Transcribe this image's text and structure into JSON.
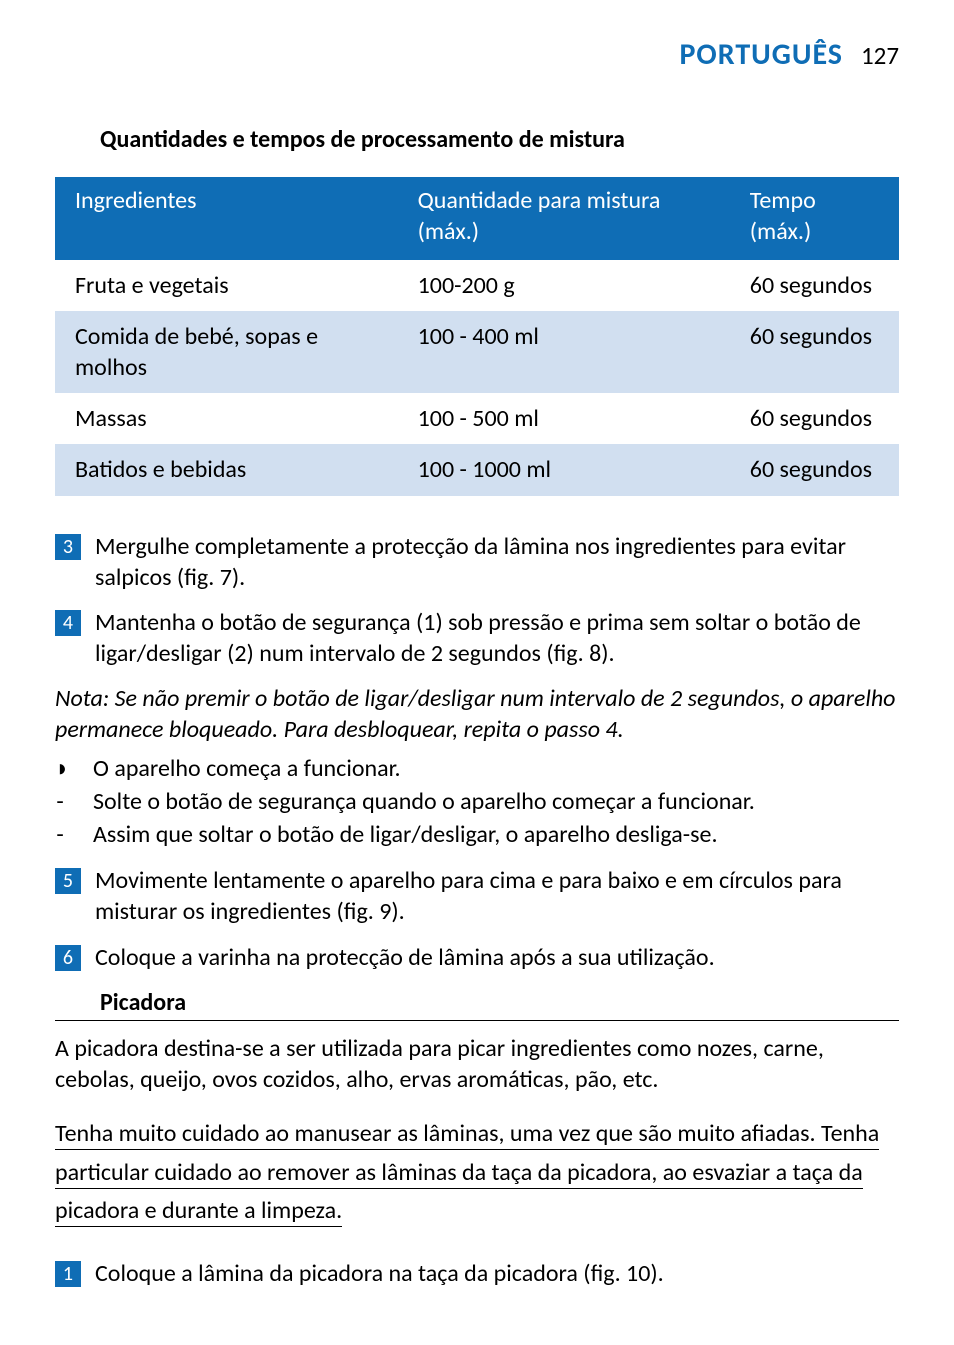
{
  "header": {
    "language": "PORTUGUÊS",
    "page_number": "127",
    "accent_color": "#0f6db5"
  },
  "table_section": {
    "title": "Quantidades e tempos de processamento de mistura",
    "header_row_bg": "#0f6db5",
    "row_odd_bg": "#ffffff",
    "row_even_bg": "#d1dff0",
    "columns": [
      "Ingredientes",
      "Quantidade para mistura (máx.)",
      "Tempo (máx.)"
    ],
    "rows": [
      [
        "Fruta e vegetais",
        "100-200 g",
        "60 segundos"
      ],
      [
        "Comida de bebé, sopas e molhos",
        "100 - 400 ml",
        "60 segundos"
      ],
      [
        "Massas",
        "100 - 500 ml",
        "60 segundos"
      ],
      [
        "Batidos e bebidas",
        "100 - 1000 ml",
        "60 segundos"
      ]
    ]
  },
  "steps_a": [
    {
      "n": "3",
      "text": "Mergulhe completamente a protecção da lâmina nos ingredientes para evitar salpicos (fig. 7)."
    },
    {
      "n": "4",
      "text": "Mantenha o botão de segurança (1) sob pressão e prima sem soltar o botão de ligar/desligar (2) num intervalo de 2 segundos (fig. 8)."
    }
  ],
  "note": "Nota: Se não premir o botão de ligar/desligar num intervalo de 2 segundos, o aparelho permanece bloqueado. Para desbloquear, repita o passo 4.",
  "bullets": [
    {
      "marker": "◗",
      "text": "O aparelho começa a funcionar."
    },
    {
      "marker": "-",
      "text": "Solte o botão de segurança quando o aparelho começar a funcionar."
    },
    {
      "marker": "-",
      "text": "Assim que soltar o botão de ligar/desligar, o aparelho desliga-se."
    }
  ],
  "steps_b": [
    {
      "n": "5",
      "text": "Movimente lentamente o aparelho para cima e para baixo e em círculos para misturar os ingredientes (fig. 9)."
    },
    {
      "n": "6",
      "text": "Coloque a varinha na protecção de lâmina após a sua utilização."
    }
  ],
  "subsection": {
    "title": "Picadora",
    "intro": "A picadora destina-se a ser utilizada para picar ingredientes como nozes, carne, cebolas, queijo, ovos cozidos, alho, ervas aromáticas, pão, etc.",
    "warning": "Tenha muito cuidado ao manusear as lâminas, uma vez que são muito afiadas. Tenha particular cuidado ao remover as lâminas da taça da picadora, ao esvaziar a taça da picadora e durante a limpeza."
  },
  "steps_c": [
    {
      "n": "1",
      "text": "Coloque a lâmina da picadora na taça da picadora (fig. 10)."
    }
  ],
  "step_badge_bg": "#0f6db5"
}
